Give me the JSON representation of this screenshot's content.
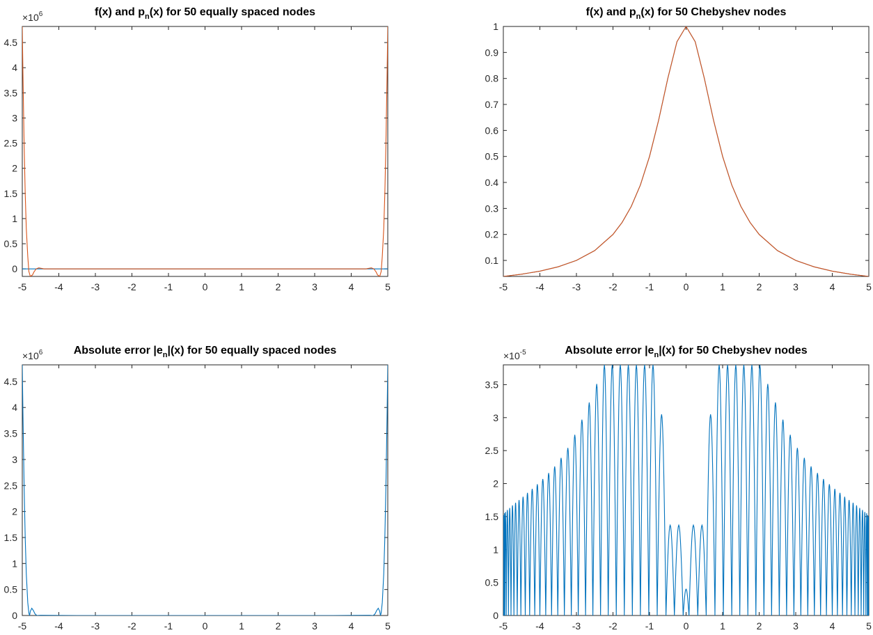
{
  "colors": {
    "blue": "#0072BD",
    "orange": "#D95319",
    "axis": "#262626"
  },
  "chart_data": [
    {
      "type": "line",
      "title": {
        "pre": "f(x) and p",
        "sub": "n",
        "post": "(x) for 50 equally spaced nodes"
      },
      "xlabel": "",
      "ylabel": "",
      "xlim": [
        -5,
        5
      ],
      "ylim": [
        -0.15,
        4.82
      ],
      "scale_exponent": {
        "base": "×10",
        "exp": "6"
      },
      "xticks": [
        -5,
        -4,
        -3,
        -2,
        -1,
        0,
        1,
        2,
        3,
        4,
        5
      ],
      "xticklabels": [
        "-5",
        "-4",
        "-3",
        "-2",
        "-1",
        "0",
        "1",
        "2",
        "3",
        "4",
        "5"
      ],
      "yticks": [
        0,
        0.5,
        1,
        1.5,
        2,
        2.5,
        3,
        3.5,
        4,
        4.5
      ],
      "yticklabels": [
        "0",
        "0.5",
        "1",
        "1.5",
        "2",
        "2.5",
        "3",
        "3.5",
        "4",
        "4.5"
      ],
      "grid": false,
      "series": [
        {
          "color": "#0072BD",
          "x": [
            -5,
            5
          ],
          "y": [
            0.0,
            0.0
          ]
        },
        {
          "color": "#D95319",
          "x": [
            -5.0,
            -4.98,
            -4.95,
            -4.92,
            -4.89,
            -4.85,
            -4.82,
            -4.78,
            -4.72,
            -4.68,
            -4.62,
            -4.55,
            -4.4,
            -3.5,
            0,
            3.5,
            4.4,
            4.55,
            4.62,
            4.68,
            4.72,
            4.78,
            4.82,
            4.85,
            4.89,
            4.92,
            4.95,
            4.98,
            5.0
          ],
          "y": [
            4.82,
            3.8,
            2.5,
            1.5,
            0.8,
            0.25,
            -0.05,
            -0.15,
            -0.12,
            -0.06,
            0.0,
            0.02,
            0.0,
            0.0,
            0.0,
            0.0,
            0.0,
            0.02,
            0.0,
            -0.06,
            -0.12,
            -0.15,
            -0.05,
            0.25,
            0.8,
            1.5,
            2.5,
            3.8,
            4.82
          ]
        }
      ]
    },
    {
      "type": "line",
      "title": {
        "pre": "f(x) and p",
        "sub": "n",
        "post": "(x) for 50 Chebyshev nodes"
      },
      "xlabel": "",
      "ylabel": "",
      "xlim": [
        -5,
        5
      ],
      "ylim": [
        0.0385,
        1.0
      ],
      "xticks": [
        -5,
        -4,
        -3,
        -2,
        -1,
        0,
        1,
        2,
        3,
        4,
        5
      ],
      "xticklabels": [
        "-5",
        "-4",
        "-3",
        "-2",
        "-1",
        "0",
        "1",
        "2",
        "3",
        "4",
        "5"
      ],
      "yticks": [
        0.1,
        0.2,
        0.3,
        0.4,
        0.5,
        0.6,
        0.7,
        0.8,
        0.9,
        1
      ],
      "yticklabels": [
        "0.1",
        "0.2",
        "0.3",
        "0.4",
        "0.5",
        "0.6",
        "0.7",
        "0.8",
        "0.9",
        "1"
      ],
      "grid": false,
      "series": [
        {
          "color": "#0072BD",
          "x": [
            -5,
            -4.5,
            -4,
            -3.5,
            -3,
            -2.5,
            -2,
            -1.75,
            -1.5,
            -1.25,
            -1,
            -0.75,
            -0.5,
            -0.25,
            0,
            0.25,
            0.5,
            0.75,
            1,
            1.25,
            1.5,
            1.75,
            2,
            2.5,
            3,
            3.5,
            4,
            4.5,
            5
          ],
          "y": [
            0.0385,
            0.0471,
            0.0588,
            0.0755,
            0.1,
            0.1379,
            0.2,
            0.2462,
            0.3077,
            0.3902,
            0.5,
            0.64,
            0.8,
            0.9412,
            1,
            0.9412,
            0.8,
            0.64,
            0.5,
            0.3902,
            0.3077,
            0.2462,
            0.2,
            0.1379,
            0.1,
            0.0755,
            0.0588,
            0.0471,
            0.0385
          ]
        },
        {
          "color": "#D95319",
          "x": [
            -5,
            -4.5,
            -4,
            -3.5,
            -3,
            -2.5,
            -2,
            -1.75,
            -1.5,
            -1.25,
            -1,
            -0.75,
            -0.5,
            -0.25,
            0,
            0.25,
            0.5,
            0.75,
            1,
            1.25,
            1.5,
            1.75,
            2,
            2.5,
            3,
            3.5,
            4,
            4.5,
            5
          ],
          "y": [
            0.0385,
            0.0471,
            0.0588,
            0.0755,
            0.1,
            0.1379,
            0.2,
            0.2462,
            0.3077,
            0.3902,
            0.5,
            0.64,
            0.8,
            0.9412,
            1,
            0.9412,
            0.8,
            0.64,
            0.5,
            0.3902,
            0.3077,
            0.2462,
            0.2,
            0.1379,
            0.1,
            0.0755,
            0.0588,
            0.0471,
            0.0385
          ]
        }
      ]
    },
    {
      "type": "line",
      "title": {
        "pre": "Absolute error |e",
        "sub": "n",
        "post": "|(x) for 50 equally spaced nodes"
      },
      "xlabel": "",
      "ylabel": "",
      "xlim": [
        -5,
        5
      ],
      "ylim": [
        0,
        4.82
      ],
      "scale_exponent": {
        "base": "×10",
        "exp": "6"
      },
      "xticks": [
        -5,
        -4,
        -3,
        -2,
        -1,
        0,
        1,
        2,
        3,
        4,
        5
      ],
      "xticklabels": [
        "-5",
        "-4",
        "-3",
        "-2",
        "-1",
        "0",
        "1",
        "2",
        "3",
        "4",
        "5"
      ],
      "yticks": [
        0,
        0.5,
        1,
        1.5,
        2,
        2.5,
        3,
        3.5,
        4,
        4.5
      ],
      "yticklabels": [
        "0",
        "0.5",
        "1",
        "1.5",
        "2",
        "2.5",
        "3",
        "3.5",
        "4",
        "4.5"
      ],
      "grid": false,
      "series": [
        {
          "color": "#0072BD",
          "x": [
            -5.0,
            -4.98,
            -4.95,
            -4.92,
            -4.89,
            -4.85,
            -4.82,
            -4.8,
            -4.78,
            -4.74,
            -4.7,
            -4.65,
            -4.6,
            -4.5,
            -3.5,
            0,
            3.5,
            4.5,
            4.6,
            4.65,
            4.7,
            4.74,
            4.78,
            4.8,
            4.82,
            4.85,
            4.89,
            4.92,
            4.95,
            4.98,
            5.0
          ],
          "y": [
            4.82,
            3.8,
            2.5,
            1.5,
            0.8,
            0.25,
            0.05,
            0.0,
            0.08,
            0.14,
            0.1,
            0.03,
            0.0,
            0.005,
            0.0,
            0.0,
            0.0,
            0.005,
            0.0,
            0.03,
            0.1,
            0.14,
            0.08,
            0.0,
            0.05,
            0.25,
            0.8,
            1.5,
            2.5,
            3.8,
            4.82
          ]
        }
      ]
    },
    {
      "type": "line",
      "title": {
        "pre": "Absolute error |e",
        "sub": "n",
        "post": "|(x) for 50 Chebyshev nodes"
      },
      "xlabel": "",
      "ylabel": "",
      "xlim": [
        -5,
        5
      ],
      "ylim": [
        0,
        3.8
      ],
      "scale_exponent": {
        "base": "×10",
        "exp": "-5"
      },
      "xticks": [
        -5,
        -4,
        -3,
        -2,
        -1,
        0,
        1,
        2,
        3,
        4,
        5
      ],
      "xticklabels": [
        "-5",
        "-4",
        "-3",
        "-2",
        "-1",
        "0",
        "1",
        "2",
        "3",
        "4",
        "5"
      ],
      "yticks": [
        0,
        0.5,
        1,
        1.5,
        2,
        2.5,
        3,
        3.5
      ],
      "yticklabels": [
        "0",
        "0.5",
        "1",
        "1.5",
        "2",
        "2.5",
        "3",
        "3.5"
      ],
      "grid": false,
      "series": [
        {
          "color": "#0072BD",
          "nodes_x": [
            -5.0,
            -4.98,
            -4.96,
            -4.92,
            -4.86,
            -4.79,
            -4.71,
            -4.62,
            -4.52,
            -4.4,
            -4.28,
            -4.14,
            -4.0,
            -3.84,
            -3.68,
            -3.51,
            -3.33,
            -3.14,
            -2.95,
            -2.75,
            -2.55,
            -2.34,
            -2.13,
            -1.91,
            -1.69,
            -1.47,
            -1.25,
            -1.02,
            -0.79,
            -0.55,
            -0.32,
            -0.08,
            0.08,
            0.32,
            0.55,
            0.79,
            1.02,
            1.25,
            1.47,
            1.69,
            1.91,
            2.13,
            2.34,
            2.55,
            2.75,
            2.95,
            3.14,
            3.33,
            3.51,
            3.68,
            3.84,
            4.0,
            4.14,
            4.28,
            4.4,
            4.52,
            4.62,
            4.71,
            4.79,
            4.86,
            4.92,
            4.96,
            4.98,
            5.0
          ],
          "peaks_y": [
            1.52,
            1.55,
            1.57,
            1.6,
            1.63,
            1.67,
            1.71,
            1.75,
            1.8,
            1.86,
            1.92,
            1.99,
            2.07,
            2.16,
            2.26,
            2.39,
            2.54,
            2.74,
            2.97,
            3.23,
            3.51,
            3.8,
            3.8,
            3.8,
            3.8,
            3.8,
            3.8,
            3.8,
            3.05,
            1.37,
            1.37,
            0.4,
            1.37,
            1.37,
            3.05,
            3.8,
            3.8,
            3.8,
            3.8,
            3.8,
            3.8,
            3.51,
            3.23,
            2.97,
            2.74,
            2.54,
            2.39,
            2.26,
            2.16,
            2.07,
            1.99,
            1.92,
            1.86,
            1.8,
            1.75,
            1.71,
            1.67,
            1.63,
            1.6,
            1.57,
            1.55,
            1.52,
            1.5
          ]
        }
      ]
    }
  ]
}
